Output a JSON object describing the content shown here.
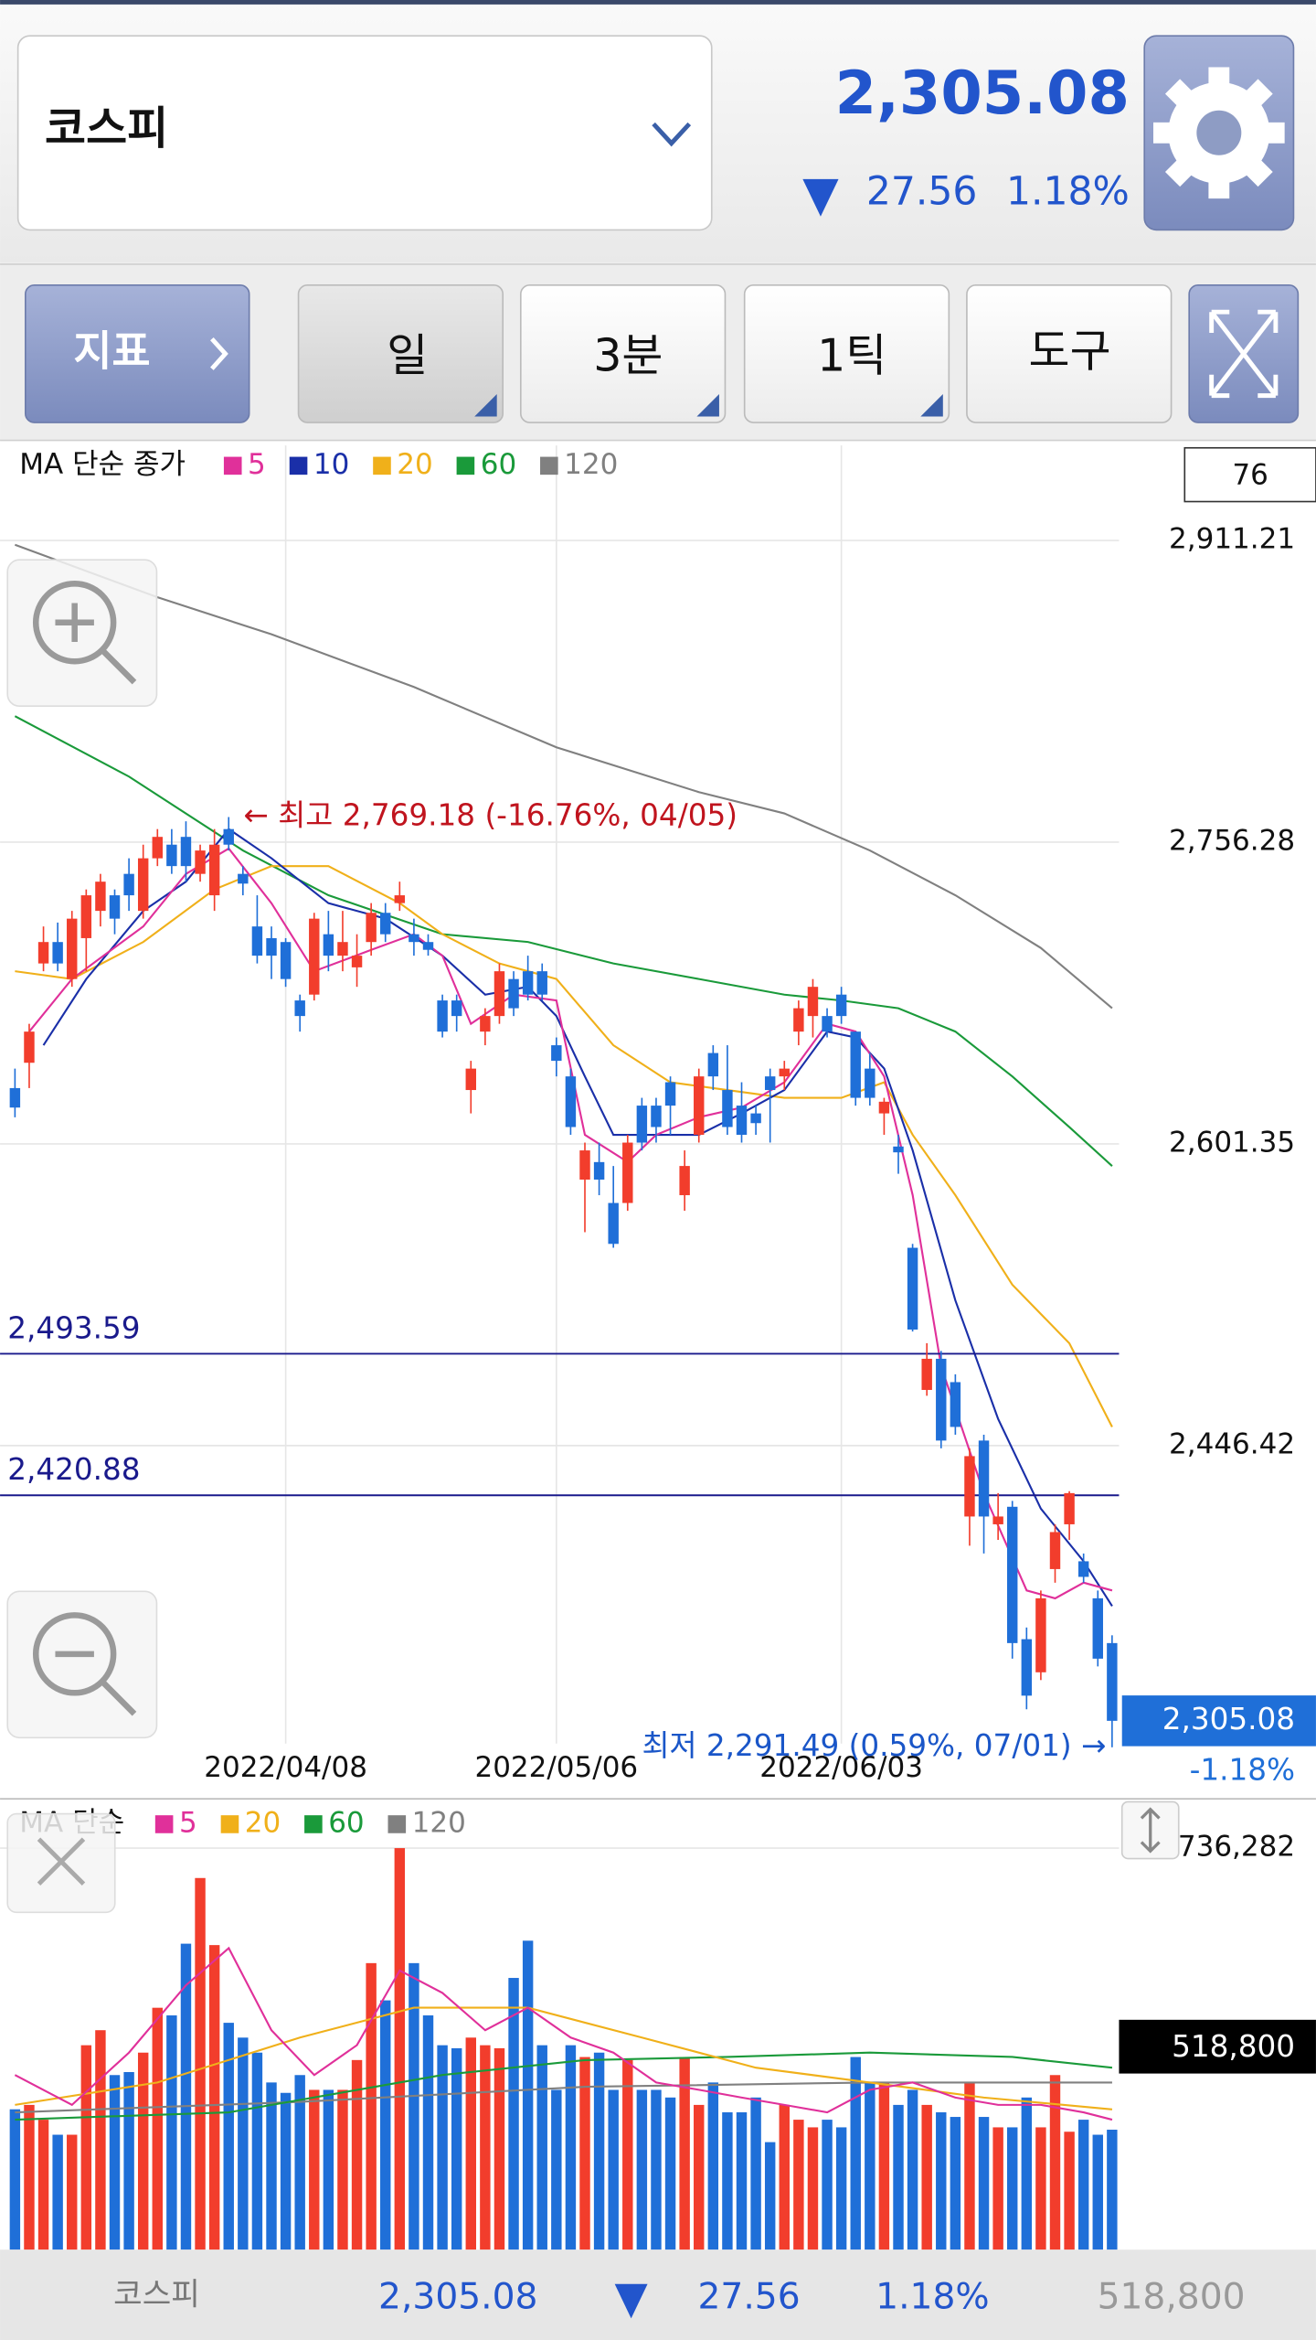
{
  "header": {
    "title": "코스피",
    "price": "2,305.08",
    "change": "27.56",
    "change_pct": "1.18%"
  },
  "toolbar": {
    "indicator": "지표",
    "period": "일",
    "interval": "3분",
    "tick": "1틱",
    "tools": "도구"
  },
  "chart_data": [
    {
      "type": "candlestick",
      "legend_title": "MA 단순 종가",
      "count_label": "76",
      "categories": [
        null,
        null,
        null,
        null,
        null,
        null,
        null,
        null,
        null,
        null,
        null,
        null,
        null,
        null,
        null,
        null,
        null,
        null,
        null,
        "2022/04/08",
        null,
        null,
        null,
        null,
        null,
        null,
        null,
        null,
        null,
        null,
        null,
        null,
        null,
        null,
        null,
        null,
        null,
        null,
        "2022/05/06",
        null,
        null,
        null,
        null,
        null,
        null,
        null,
        null,
        null,
        null,
        null,
        null,
        null,
        null,
        null,
        null,
        null,
        null,
        null,
        "2022/06/03",
        null,
        null,
        null,
        null,
        null,
        null,
        null,
        null,
        null,
        null,
        null,
        null,
        null,
        null,
        null,
        null,
        null,
        null,
        null
      ],
      "open": [
        2630,
        2643,
        2694,
        2705,
        2686,
        2707,
        2721,
        2729,
        2740,
        2721,
        2748,
        2755,
        2759,
        2740,
        2729,
        2763,
        2740,
        2713,
        2707,
        2705,
        2675,
        2678,
        2709,
        2698,
        2692,
        2705,
        2720,
        2725,
        2709,
        2705,
        2675,
        2675,
        2629,
        2659,
        2667,
        2686,
        2690,
        2690,
        2652,
        2636,
        2583,
        2592,
        2571,
        2571,
        2621,
        2621,
        2633,
        2575,
        2606,
        2648,
        2629,
        2621,
        2617,
        2636,
        2636,
        2659,
        2667,
        2667,
        2678,
        2659,
        2640,
        2617,
        2600,
        2548,
        2475,
        2491,
        2479,
        2410,
        2449,
        2406,
        2415,
        2347,
        2330,
        2383,
        2406,
        2387,
        2368,
        2345
      ],
      "high": [
        2640,
        2663,
        2713,
        2715,
        2721,
        2732,
        2740,
        2732,
        2748,
        2755,
        2763,
        2763,
        2767,
        2755,
        2763,
        2769.18,
        2744,
        2729,
        2713,
        2707,
        2678,
        2720,
        2721,
        2721,
        2709,
        2725,
        2725,
        2736,
        2717,
        2709,
        2678,
        2678,
        2644,
        2671,
        2694,
        2690,
        2698,
        2694,
        2656,
        2640,
        2602,
        2602,
        2590,
        2606,
        2625,
        2625,
        2636,
        2598,
        2640,
        2652,
        2652,
        2633,
        2621,
        2640,
        2644,
        2675,
        2686,
        2671,
        2682,
        2659,
        2648,
        2625,
        2606,
        2550,
        2499,
        2495,
        2483,
        2445,
        2452,
        2422,
        2418,
        2353,
        2372,
        2406,
        2423,
        2391,
        2372,
        2349
      ],
      "low": [
        2615,
        2630,
        2690,
        2690,
        2682,
        2690,
        2713,
        2709,
        2721,
        2717,
        2744,
        2740,
        2736,
        2736,
        2721,
        2752,
        2729,
        2694,
        2686,
        2682,
        2659,
        2675,
        2690,
        2690,
        2682,
        2698,
        2705,
        2721,
        2698,
        2698,
        2656,
        2659,
        2617,
        2652,
        2663,
        2667,
        2675,
        2675,
        2636,
        2606,
        2556,
        2575,
        2548,
        2567,
        2598,
        2602,
        2606,
        2567,
        2602,
        2629,
        2606,
        2602,
        2606,
        2602,
        2629,
        2652,
        2656,
        2656,
        2663,
        2621,
        2621,
        2606,
        2586,
        2505,
        2472,
        2445,
        2452,
        2395,
        2391,
        2398,
        2337,
        2311,
        2326,
        2376,
        2398,
        2376,
        2333,
        2291.49
      ],
      "close": [
        2620,
        2659,
        2705,
        2694,
        2717,
        2729,
        2736,
        2717,
        2729,
        2748,
        2759,
        2744,
        2744,
        2752,
        2755,
        2755,
        2735,
        2698,
        2698,
        2686,
        2667,
        2717,
        2698,
        2705,
        2698,
        2720,
        2709,
        2729,
        2705,
        2701,
        2659,
        2667,
        2640,
        2667,
        2690,
        2671,
        2678,
        2678,
        2644,
        2610,
        2598,
        2583,
        2550,
        2602,
        2602,
        2610,
        2621,
        2590,
        2636,
        2636,
        2610,
        2606,
        2612,
        2629,
        2640,
        2671,
        2682,
        2659,
        2667,
        2625,
        2625,
        2623,
        2597,
        2506,
        2491,
        2449,
        2456,
        2441,
        2410,
        2410,
        2345,
        2318,
        2368,
        2402,
        2422,
        2379,
        2337,
        2305.08
      ],
      "up_color": "#f23d2c",
      "down_color": "#1f6fd8",
      "ylim": [
        2290,
        2960
      ],
      "yticks": [
        {
          "value": 2446.42,
          "label": "2,446.42"
        },
        {
          "value": 2601.35,
          "label": "2,601.35"
        },
        {
          "value": 2756.28,
          "label": "2,756.28"
        },
        {
          "value": 2911.21,
          "label": "2,911.21"
        }
      ],
      "grid": true,
      "lines": [
        {
          "name": "5",
          "color": "#e0309a",
          "x": [
            1,
            4,
            9,
            12,
            15,
            18,
            21,
            25,
            28,
            30,
            32,
            35,
            38,
            40,
            43,
            45,
            48,
            51,
            54,
            57,
            59,
            61,
            63,
            65,
            68,
            71,
            73,
            75,
            77
          ],
          "values": [
            2659,
            2686,
            2713,
            2740,
            2753,
            2725,
            2690,
            2701,
            2709,
            2698,
            2663,
            2678,
            2675,
            2606,
            2592,
            2606,
            2615,
            2620,
            2633,
            2663,
            2659,
            2636,
            2575,
            2487,
            2422,
            2372,
            2368,
            2376,
            2372
          ]
        },
        {
          "name": "10",
          "color": "#1a2fa8",
          "x": [
            2,
            5,
            9,
            12,
            15,
            18,
            22,
            26,
            30,
            33,
            36,
            38,
            40,
            42,
            45,
            48,
            51,
            54,
            57,
            59,
            61,
            63,
            66,
            69,
            72,
            75,
            77
          ],
          "values": [
            2652,
            2686,
            2721,
            2736,
            2763,
            2748,
            2725,
            2717,
            2698,
            2678,
            2682,
            2667,
            2636,
            2606,
            2606,
            2606,
            2617,
            2629,
            2659,
            2656,
            2640,
            2598,
            2521,
            2460,
            2414,
            2387,
            2364
          ]
        },
        {
          "name": "20",
          "color": "#f0b01a",
          "x": [
            0,
            4,
            9,
            14,
            18,
            22,
            27,
            30,
            34,
            38,
            42,
            46,
            50,
            54,
            58,
            61,
            63,
            66,
            70,
            74,
            77
          ],
          "values": [
            2690,
            2686,
            2705,
            2732,
            2744,
            2744,
            2725,
            2709,
            2694,
            2686,
            2652,
            2633,
            2629,
            2625,
            2625,
            2633,
            2606,
            2575,
            2529,
            2499,
            2456
          ]
        },
        {
          "name": "60",
          "color": "#1a9a3a",
          "x": [
            0,
            8,
            16,
            22,
            30,
            36,
            42,
            48,
            54,
            58,
            62,
            66,
            70,
            74,
            77
          ],
          "values": [
            2821,
            2790,
            2752,
            2729,
            2709,
            2705,
            2694,
            2686,
            2678,
            2675,
            2671,
            2659,
            2636,
            2610,
            2590
          ]
        },
        {
          "name": "120",
          "color": "#808080",
          "x": [
            0,
            10,
            18,
            28,
            38,
            48,
            54,
            60,
            66,
            72,
            77
          ],
          "values": [
            2909,
            2882,
            2863,
            2836,
            2805,
            2782,
            2771,
            2752,
            2729,
            2702,
            2671
          ]
        }
      ],
      "hlines": [
        {
          "value": 2493.59,
          "label": "2,493.59",
          "color": "#1a1a8c"
        },
        {
          "value": 2420.88,
          "label": "2,420.88",
          "color": "#1a1a8c"
        }
      ],
      "high_label": "← 최고 2,769.18 (-16.76%, 04/05)",
      "low_label": "최저 2,291.49 (0.59%, 07/01) →",
      "current": {
        "value": 2305.08,
        "label": "2,305.08",
        "change": "-1.18%"
      }
    },
    {
      "type": "bar",
      "legend_title": "MA 단순",
      "values": [
        607000,
        626000,
        562000,
        497000,
        497000,
        884000,
        949000,
        755000,
        768000,
        852000,
        1046000,
        1013000,
        1323000,
        1607000,
        1317000,
        981000,
        917000,
        852000,
        723000,
        678000,
        755000,
        691000,
        691000,
        691000,
        820000,
        1239000,
        1078000,
        1736282,
        1239000,
        1013000,
        884000,
        871000,
        917000,
        884000,
        871000,
        1175000,
        1336000,
        884000,
        691000,
        884000,
        833000,
        852000,
        691000,
        820000,
        691000,
        691000,
        658000,
        833000,
        626000,
        723000,
        594000,
        594000,
        658000,
        465000,
        626000,
        562000,
        529000,
        562000,
        529000,
        833000,
        723000,
        723000,
        626000,
        691000,
        626000,
        594000,
        574000,
        723000,
        574000,
        529000,
        529000,
        658000,
        529000,
        755000,
        510000,
        562000,
        497000,
        518800
      ],
      "ylim": [
        0,
        1736282
      ],
      "yticks": [
        {
          "value": 1736282,
          "label": "1,736,282"
        }
      ],
      "lines": [
        {
          "name": "5",
          "color": "#e0309a",
          "x": [
            0,
            4,
            8,
            12,
            15,
            18,
            21,
            24,
            27,
            30,
            33,
            36,
            39,
            42,
            45,
            48,
            51,
            54,
            57,
            60,
            63,
            66,
            69,
            72,
            75,
            77
          ],
          "values": [
            755000,
            626000,
            852000,
            1143000,
            1304000,
            949000,
            755000,
            884000,
            1207000,
            1110000,
            949000,
            1046000,
            917000,
            852000,
            723000,
            691000,
            658000,
            626000,
            594000,
            691000,
            723000,
            658000,
            626000,
            626000,
            594000,
            562000
          ]
        },
        {
          "name": "20",
          "color": "#f0b01a",
          "x": [
            0,
            10,
            20,
            28,
            36,
            44,
            52,
            60,
            68,
            77
          ],
          "values": [
            626000,
            723000,
            917000,
            1046000,
            1046000,
            917000,
            787000,
            723000,
            658000,
            607000
          ]
        },
        {
          "name": "60",
          "color": "#1a9a3a",
          "x": [
            0,
            15,
            30,
            40,
            50,
            60,
            70,
            77
          ],
          "values": [
            562000,
            594000,
            755000,
            820000,
            833000,
            852000,
            833000,
            787000
          ]
        },
        {
          "name": "120",
          "color": "#808080",
          "x": [
            0,
            20,
            40,
            60,
            77
          ],
          "values": [
            594000,
            639000,
            704000,
            723000,
            723000
          ]
        }
      ],
      "current_label": "518,800"
    }
  ],
  "footer": {
    "title": "코스피",
    "price": "2,305.08",
    "change": "27.56",
    "change_pct": "1.18%",
    "volume": "518,800"
  }
}
